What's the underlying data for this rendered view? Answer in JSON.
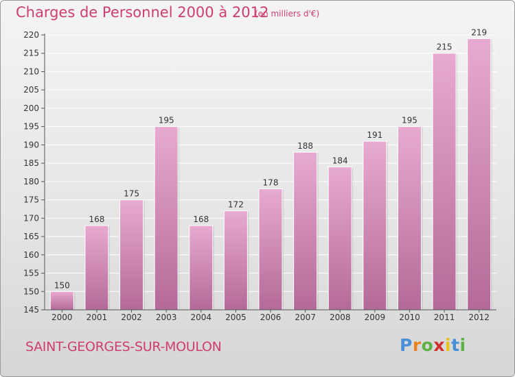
{
  "title": "Charges de Personnel 2000 à 2012",
  "subtitle": "(en milliers d'€)",
  "commune": "SAINT-GEORGES-SUR-MOULON",
  "logo": {
    "letters": [
      "P",
      "r",
      "o",
      "x",
      "i",
      "t",
      "i"
    ],
    "colors": [
      "#4a8fd6",
      "#e8831c",
      "#5bb144",
      "#d22e2e",
      "#e8c21a",
      "#4a8fd6",
      "#5bb144"
    ]
  },
  "colors": {
    "bar_top": "#e8aad0",
    "bar_bottom": "#b46a98",
    "title": "#d03c72"
  },
  "chart_data": {
    "type": "bar",
    "title": "Charges de Personnel 2000 à 2012",
    "subtitle": "(en milliers d'€)",
    "categories": [
      "2000",
      "2001",
      "2002",
      "2003",
      "2004",
      "2005",
      "2006",
      "2007",
      "2008",
      "2009",
      "2010",
      "2011",
      "2012"
    ],
    "values": [
      150,
      168,
      175,
      195,
      168,
      172,
      178,
      188,
      184,
      191,
      195,
      215,
      219
    ],
    "ylim": [
      145,
      220
    ],
    "yticks": [
      145,
      150,
      155,
      160,
      165,
      170,
      175,
      180,
      185,
      190,
      195,
      200,
      205,
      210,
      215,
      220
    ],
    "grid": true,
    "data_labels": true
  }
}
